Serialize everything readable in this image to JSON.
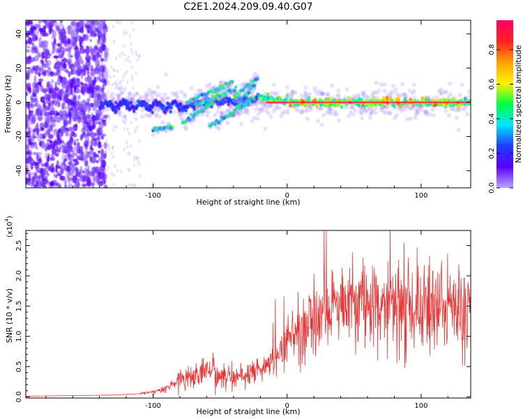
{
  "figure_title": "C2E1.2024.209.09.40.G07",
  "chart_data": [
    {
      "type": "heatmap",
      "xlabel": "Height of straight line (km)",
      "ylabel": "Frequency (Hz)",
      "xlim": [
        -195,
        137
      ],
      "ylim": [
        -50,
        48
      ],
      "x_ticks": [
        -100,
        0,
        100
      ],
      "x_tick_labels": [
        "-100",
        "0",
        "100"
      ],
      "y_ticks": [
        -40,
        -20,
        0,
        20,
        40
      ],
      "y_tick_labels": [
        "-40",
        "-20",
        "0",
        "20",
        "40"
      ],
      "colorbar": {
        "label": "Normalized spectral amplitude",
        "range": [
          0.0,
          0.97
        ],
        "ticks": [
          0.0,
          0.2,
          0.4,
          0.6,
          0.8
        ],
        "tick_labels": [
          "0.0",
          "0.2",
          "0.4",
          "0.6",
          "0.8"
        ],
        "colors": [
          "#b8a6ff",
          "#5a00ff",
          "#1e3cff",
          "#00e6ff",
          "#00ff40",
          "#fff200",
          "#ff9f00",
          "#ff1f1f",
          "#ff0066"
        ]
      },
      "features": [
        {
          "name": "noise",
          "x_range": [
            -195,
            -135
          ],
          "freq_range": [
            -50,
            48
          ],
          "amplitude": 0.05
        },
        {
          "name": "carrier",
          "x_range": [
            -140,
            137
          ],
          "freq": 0,
          "amplitude": 0.85
        },
        {
          "name": "upper arcs",
          "x_range": [
            -75,
            -22
          ],
          "freq_range": [
            0,
            15
          ]
        },
        {
          "name": "lower arcs",
          "x_range": [
            -100,
            -25
          ],
          "freq_range": [
            -16,
            10
          ]
        }
      ]
    },
    {
      "type": "line",
      "xlabel": "Height of straight line (km)",
      "ylabel": "SNR (10 * v/v)",
      "y_multiplier": "(x10",
      "y_multiplier_exp": "4",
      "y_multiplier_close": ")",
      "xlim": [
        -195,
        137
      ],
      "ylim": [
        -0.02,
        2.75
      ],
      "x_ticks": [
        -100,
        0,
        100
      ],
      "x_tick_labels": [
        "-100",
        "0",
        "100"
      ],
      "y_ticks": [
        0.0,
        0.5,
        1.0,
        1.5,
        2.0,
        2.5
      ],
      "y_tick_labels": [
        "0.0",
        "0.5",
        "1.0",
        "1.5",
        "2.0",
        "2.5"
      ],
      "color": "#ee3333",
      "x": [
        -195,
        -160,
        -130,
        -110,
        -100,
        -90,
        -80,
        -70,
        -60,
        -50,
        -40,
        -30,
        -20,
        -12,
        -5,
        0,
        10,
        20,
        30,
        40,
        50,
        60,
        70,
        80,
        90,
        100,
        110,
        120,
        137
      ],
      "values": [
        0.01,
        0.02,
        0.03,
        0.05,
        0.08,
        0.15,
        0.28,
        0.35,
        0.45,
        0.35,
        0.32,
        0.35,
        0.48,
        0.55,
        0.8,
        0.95,
        1.1,
        1.25,
        1.45,
        1.55,
        1.6,
        1.58,
        1.55,
        1.6,
        1.55,
        1.5,
        1.6,
        1.55,
        1.5
      ]
    }
  ]
}
